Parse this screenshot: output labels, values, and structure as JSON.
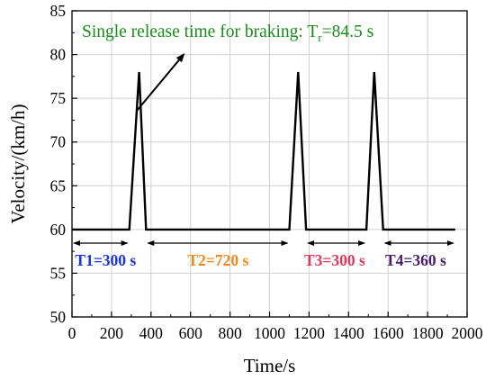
{
  "chart_data": {
    "type": "line",
    "xlabel": "Time/s",
    "ylabel": "Velocity/(km/h)",
    "xlim": [
      0,
      2000
    ],
    "ylim": [
      50,
      85
    ],
    "x_ticks": [
      0,
      200,
      400,
      600,
      800,
      1000,
      1200,
      1400,
      1600,
      1800,
      2000
    ],
    "y_ticks": [
      50,
      55,
      60,
      65,
      70,
      75,
      80,
      85
    ],
    "grid": true,
    "series": [
      {
        "points": [
          [
            0,
            60
          ],
          [
            290,
            60
          ],
          [
            340,
            78
          ],
          [
            375,
            60
          ],
          [
            1100,
            60
          ],
          [
            1145,
            78
          ],
          [
            1185,
            60
          ],
          [
            1490,
            60
          ],
          [
            1530,
            78
          ],
          [
            1575,
            60
          ],
          [
            1940,
            60
          ]
        ]
      }
    ],
    "annotation": {
      "text": "Single release time for braking: T",
      "sub": "r",
      "suffix": "=84.5 s",
      "color": "#1a8a1a",
      "arrow_from": [
        325,
        73.5
      ],
      "arrow_to": [
        565,
        80
      ],
      "text_pos": [
        50,
        82
      ]
    },
    "intervals": [
      {
        "label": "T1=300 s",
        "start": 0,
        "end": 290,
        "color": "#1a35d6",
        "label_x": 170
      },
      {
        "label": "T2=720 s",
        "start": 375,
        "end": 1100,
        "color": "#f08a1c",
        "label_x": 740
      },
      {
        "label": "T3=300 s",
        "start": 1185,
        "end": 1490,
        "color": "#e03a5a",
        "label_x": 1330
      },
      {
        "label": "T4=360 s",
        "start": 1575,
        "end": 1940,
        "color": "#4a1d6a",
        "label_x": 1740
      }
    ]
  }
}
